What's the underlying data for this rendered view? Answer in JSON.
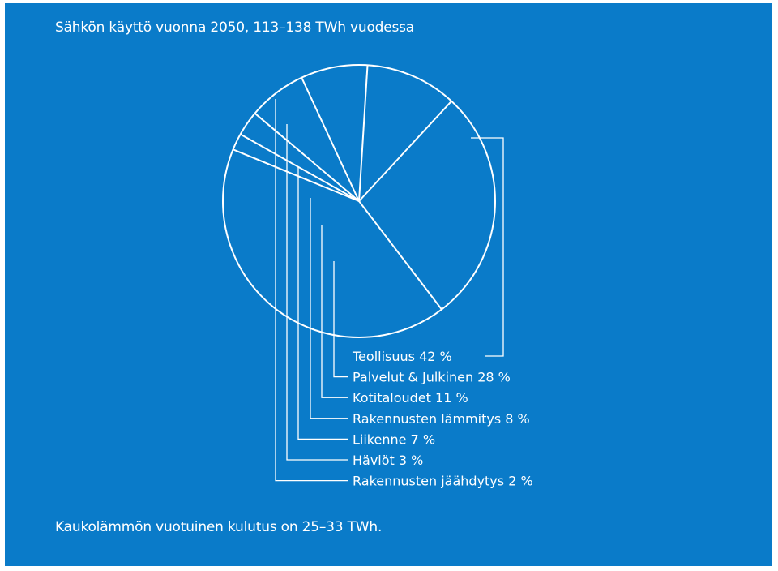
{
  "title": "Sähkön käyttö vuonna 2050, 113–138 TWh vuodessa",
  "footnote": "Kaukolämmön vuotuinen kulutus on 25–33 TWh.",
  "colors": {
    "background": "#0a7bc9",
    "stroke": "#ffffff"
  },
  "chart_data": {
    "type": "pie",
    "title": "Sähkön käyttö vuonna 2050, 113–138 TWh vuodessa",
    "slices": [
      {
        "label": "Teollisuus 42 %",
        "value": 42
      },
      {
        "label": "Palvelut & Julkinen 28 %",
        "value": 28
      },
      {
        "label": "Kotitaloudet 11 %",
        "value": 11
      },
      {
        "label": "Rakennusten lämmitys 8 %",
        "value": 8
      },
      {
        "label": "Liikenne 7 %",
        "value": 7
      },
      {
        "label": "Häviöt 3 %",
        "value": 3
      },
      {
        "label": "Rakennusten jäähdytys 2 %",
        "value": 2
      }
    ],
    "legend": "bottom-right"
  }
}
